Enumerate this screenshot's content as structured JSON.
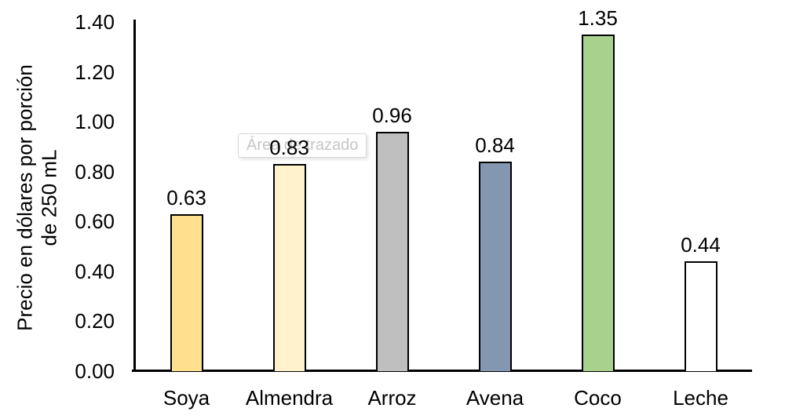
{
  "chart_data": {
    "type": "bar",
    "title": "",
    "categories": [
      "Soya",
      "Almendra",
      "Arroz",
      "Avena",
      "Coco",
      "Leche"
    ],
    "values": [
      0.63,
      0.83,
      0.96,
      0.84,
      1.35,
      0.44
    ],
    "value_labels": [
      "0.63",
      "0.83",
      "0.96",
      "0.84",
      "1.35",
      "0.44"
    ],
    "bar_colors": [
      "#FFE08F",
      "#FFF2CC",
      "#BFBFBF",
      "#8497B0",
      "#A9D18E",
      "#FFFFFF"
    ],
    "bar_border_color": "#000000",
    "ylabel_line1": "Precio en dólares por porción",
    "ylabel_line2": "de 250 mL",
    "xlabel": "",
    "ylim": [
      0,
      1.4
    ],
    "ytick_step": 0.2,
    "yticks": [
      "0.00",
      "0.20",
      "0.40",
      "0.60",
      "0.80",
      "1.00",
      "1.20",
      "1.40"
    ],
    "grid": false,
    "legend": false,
    "axis_color": "#000000"
  },
  "tooltip": {
    "label": "Área de trazado",
    "text_color": "#C6C6C6",
    "bg_color": "#FEFEFE",
    "border_color": "#D9D9D9"
  }
}
